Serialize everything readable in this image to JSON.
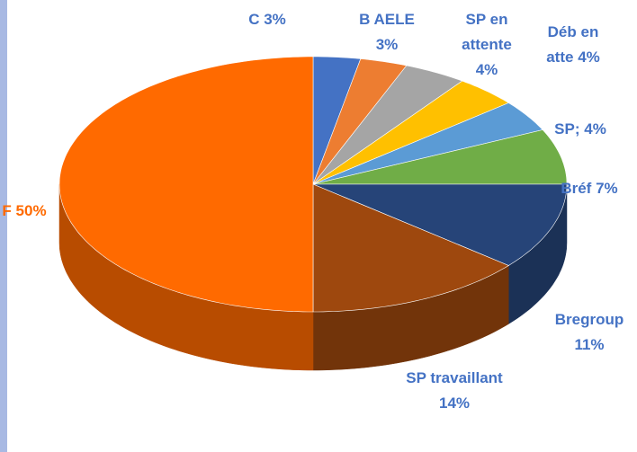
{
  "chart_data": {
    "type": "pie3d",
    "categories": [
      "C",
      "B AELE",
      "SP en attente",
      "Déb en atte",
      "SP;",
      "Bréf",
      "Bregroup",
      "SP travaillant",
      "F"
    ],
    "values": [
      3,
      3,
      4,
      4,
      4,
      7,
      11,
      14,
      50
    ],
    "value_labels": [
      "3%",
      "3%",
      "4%",
      "4%",
      "4%",
      "7%",
      "11%",
      "14%",
      "50%"
    ],
    "colors": [
      "#4472c4",
      "#ed7d31",
      "#a5a5a5",
      "#ffc000",
      "#5b9bd5",
      "#70ad47",
      "#264478",
      "#9e480e",
      "#ff6a00"
    ],
    "label_colors": [
      "#4472c4",
      "#4472c4",
      "#4472c4",
      "#4472c4",
      "#4472c4",
      "#4472c4",
      "#4472c4",
      "#4472c4",
      "#ff6a00"
    ]
  }
}
